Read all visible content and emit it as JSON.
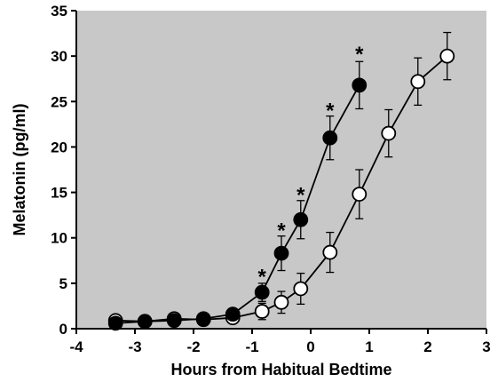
{
  "chart_data": {
    "type": "line",
    "title": "",
    "xlabel": "Hours from Habitual Bedtime",
    "ylabel": "Melatonin (pg/ml)",
    "xlim": [
      -4,
      3
    ],
    "ylim": [
      0,
      35
    ],
    "x_ticks": [
      "-4",
      "-3",
      "-2",
      "-1",
      "0",
      "1",
      "2",
      "3"
    ],
    "y_ticks": [
      "0",
      "5",
      "10",
      "15",
      "20",
      "25",
      "30",
      "35"
    ],
    "grid": false,
    "legend": "none",
    "plot_background": "#c8c8c8",
    "series": [
      {
        "marker": "filled-circle",
        "color": "#000000",
        "x": [
          -3.33,
          -2.83,
          -2.33,
          -1.83,
          -1.33,
          -0.83,
          -0.5,
          -0.17,
          0.33,
          0.83
        ],
        "y": [
          0.6,
          0.8,
          0.9,
          1.1,
          1.6,
          4.0,
          8.3,
          12.0,
          21.0,
          26.8
        ],
        "err": [
          0.3,
          0.3,
          0.3,
          0.4,
          0.5,
          1.0,
          1.9,
          2.1,
          2.4,
          2.6
        ]
      },
      {
        "marker": "open-circle",
        "color": "#000000",
        "x": [
          -3.33,
          -2.83,
          -2.33,
          -1.83,
          -1.33,
          -0.83,
          -0.5,
          -0.17,
          0.33,
          0.83,
          1.33,
          1.83,
          2.33
        ],
        "y": [
          0.9,
          0.8,
          1.1,
          1.0,
          1.2,
          1.9,
          2.9,
          4.4,
          8.4,
          14.8,
          21.5,
          27.2,
          30.0
        ],
        "err": [
          0.3,
          0.3,
          0.4,
          0.4,
          0.5,
          0.9,
          1.2,
          1.7,
          2.2,
          2.7,
          2.6,
          2.6,
          2.6
        ]
      }
    ],
    "annotations": [
      {
        "text": "*",
        "x": -0.83,
        "y": 5.9
      },
      {
        "text": "*",
        "x": -0.5,
        "y": 11.0
      },
      {
        "text": "*",
        "x": -0.17,
        "y": 14.9
      },
      {
        "text": "*",
        "x": 0.33,
        "y": 24.2
      },
      {
        "text": "*",
        "x": 0.83,
        "y": 30.4
      }
    ]
  }
}
